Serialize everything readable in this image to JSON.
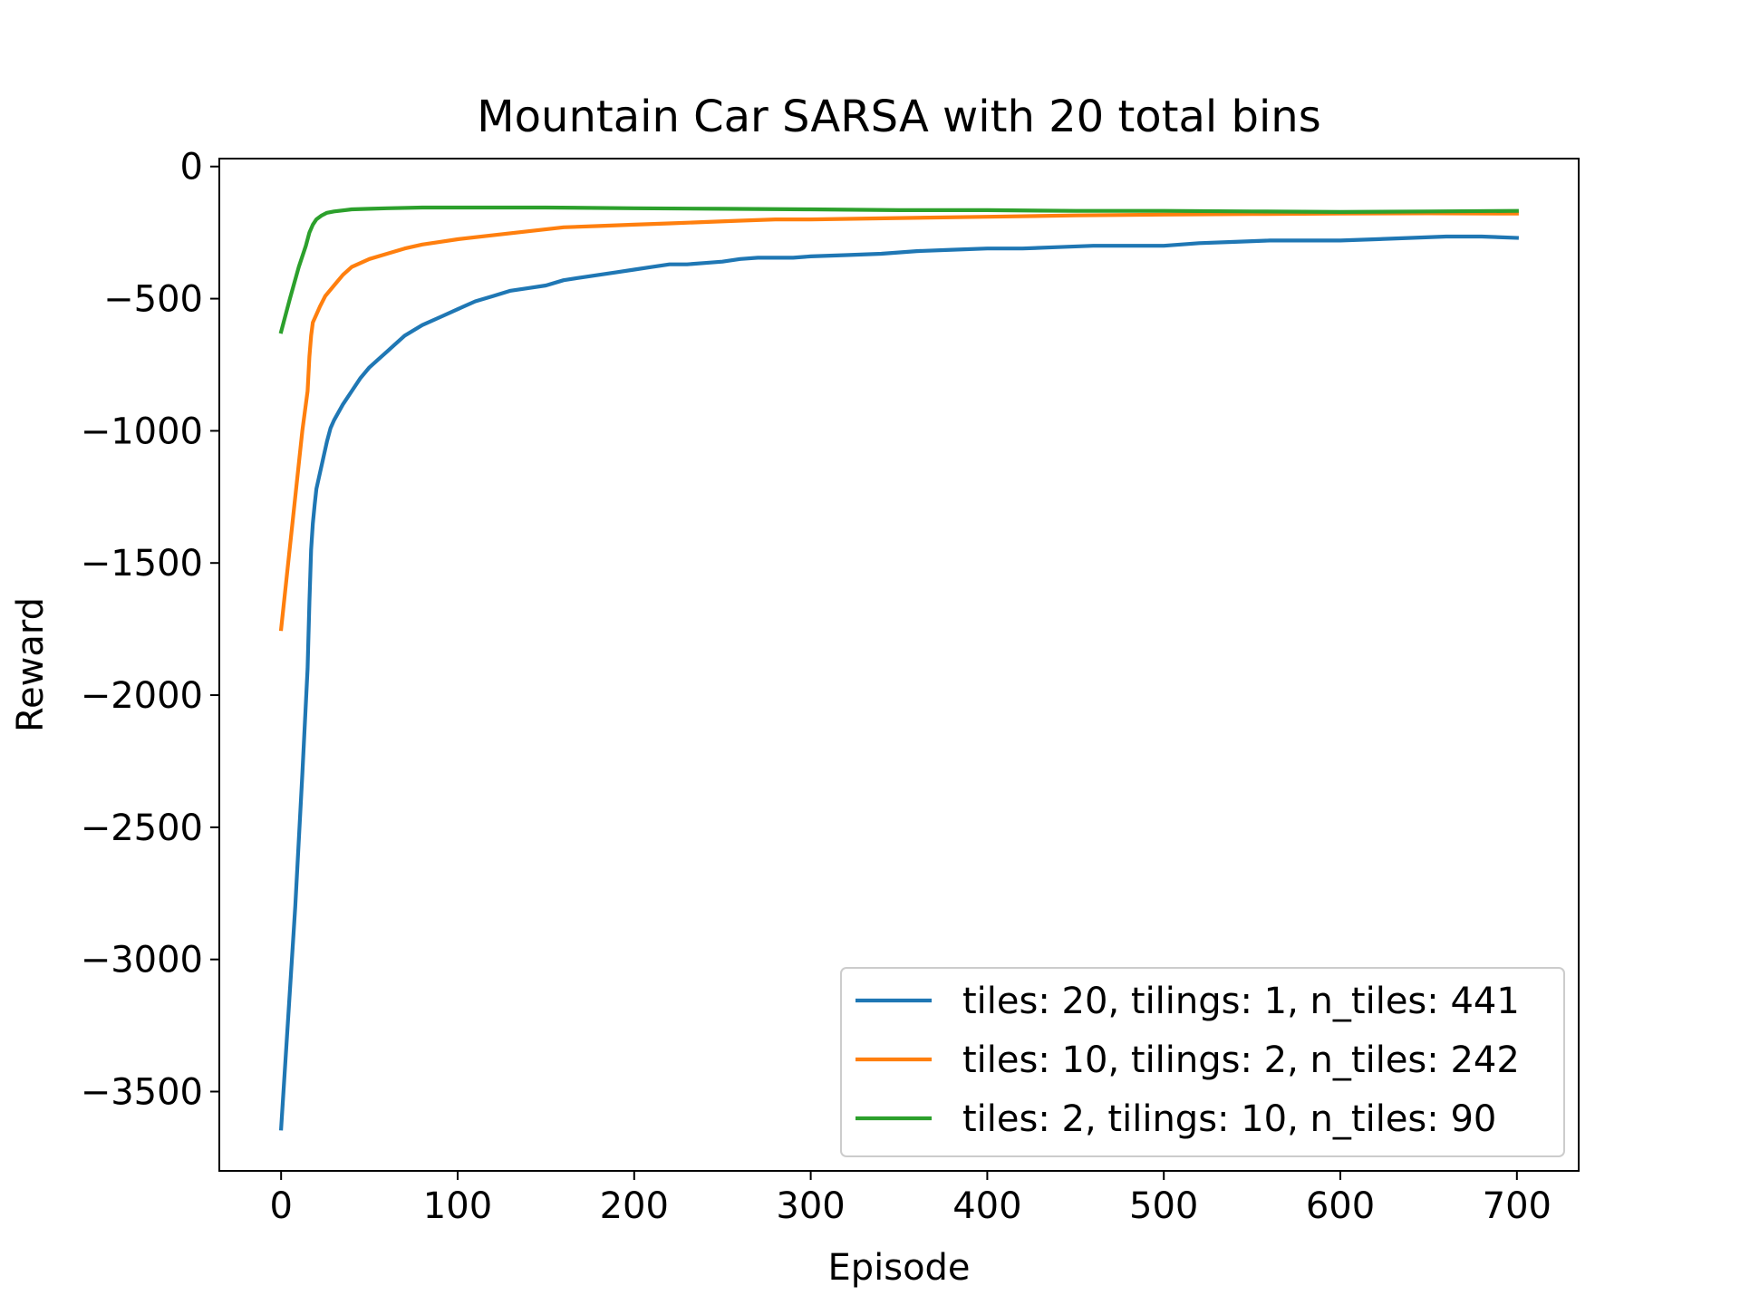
{
  "chart_data": {
    "type": "line",
    "title": "Mountain Car SARSA with 20 total bins",
    "xlabel": "Episode",
    "ylabel": "Reward",
    "xlim": [
      -35,
      735
    ],
    "ylim": [
      -3800,
      30
    ],
    "xticks": [
      0,
      100,
      200,
      300,
      400,
      500,
      600,
      700
    ],
    "xtick_labels": [
      "0",
      "100",
      "200",
      "300",
      "400",
      "500",
      "600",
      "700"
    ],
    "yticks": [
      0,
      -500,
      -1000,
      -1500,
      -2000,
      -2500,
      -3000,
      -3500
    ],
    "ytick_labels": [
      "0",
      "−500",
      "−1000",
      "−1500",
      "−2000",
      "−2500",
      "−3000",
      "−3500"
    ],
    "grid": false,
    "legend_position": "lower-right",
    "series": [
      {
        "name": "tiles: 20, tilings: 1, n_tiles: 441",
        "color": "#1f77b4",
        "x": [
          0,
          8,
          12,
          15,
          16,
          17,
          18,
          19,
          20,
          22,
          24,
          26,
          28,
          30,
          35,
          40,
          45,
          50,
          55,
          60,
          70,
          80,
          90,
          100,
          110,
          120,
          130,
          140,
          150,
          160,
          170,
          180,
          190,
          200,
          210,
          220,
          230,
          240,
          250,
          260,
          270,
          280,
          290,
          300,
          320,
          340,
          360,
          380,
          400,
          420,
          440,
          460,
          480,
          500,
          520,
          540,
          560,
          580,
          600,
          620,
          640,
          660,
          680,
          700
        ],
        "y": [
          -3640,
          -2800,
          -2300,
          -1900,
          -1650,
          -1450,
          -1350,
          -1280,
          -1220,
          -1160,
          -1100,
          -1040,
          -990,
          -960,
          -900,
          -850,
          -800,
          -760,
          -730,
          -700,
          -640,
          -600,
          -570,
          -540,
          -510,
          -490,
          -470,
          -460,
          -450,
          -430,
          -420,
          -410,
          -400,
          -390,
          -380,
          -370,
          -370,
          -365,
          -360,
          -350,
          -345,
          -345,
          -345,
          -340,
          -335,
          -330,
          -320,
          -315,
          -310,
          -310,
          -305,
          -300,
          -300,
          -300,
          -290,
          -285,
          -280,
          -280,
          -280,
          -275,
          -270,
          -265,
          -265,
          -270
        ]
      },
      {
        "name": "tiles: 10, tilings: 2, n_tiles: 242",
        "color": "#ff7f0e",
        "x": [
          0,
          8,
          12,
          15,
          16,
          17,
          18,
          20,
          22,
          25,
          30,
          35,
          40,
          50,
          60,
          70,
          80,
          90,
          100,
          120,
          140,
          160,
          180,
          200,
          220,
          240,
          260,
          280,
          300,
          350,
          400,
          450,
          500,
          550,
          600,
          650,
          700
        ],
        "y": [
          -1750,
          -1250,
          -1000,
          -850,
          -720,
          -640,
          -590,
          -560,
          -530,
          -490,
          -450,
          -410,
          -380,
          -350,
          -330,
          -310,
          -295,
          -285,
          -275,
          -260,
          -245,
          -230,
          -225,
          -220,
          -215,
          -210,
          -205,
          -200,
          -200,
          -195,
          -190,
          -185,
          -182,
          -180,
          -178,
          -177,
          -178
        ]
      },
      {
        "name": "tiles: 2, tilings: 10, n_tiles: 90",
        "color": "#2ca02c",
        "x": [
          0,
          5,
          10,
          14,
          16,
          18,
          20,
          23,
          26,
          30,
          40,
          50,
          60,
          80,
          100,
          150,
          200,
          250,
          300,
          350,
          400,
          450,
          500,
          550,
          600,
          650,
          700
        ],
        "y": [
          -625,
          -500,
          -380,
          -300,
          -250,
          -220,
          -200,
          -185,
          -175,
          -170,
          -162,
          -160,
          -158,
          -155,
          -155,
          -155,
          -158,
          -160,
          -162,
          -165,
          -165,
          -168,
          -168,
          -170,
          -172,
          -170,
          -168
        ]
      }
    ]
  }
}
